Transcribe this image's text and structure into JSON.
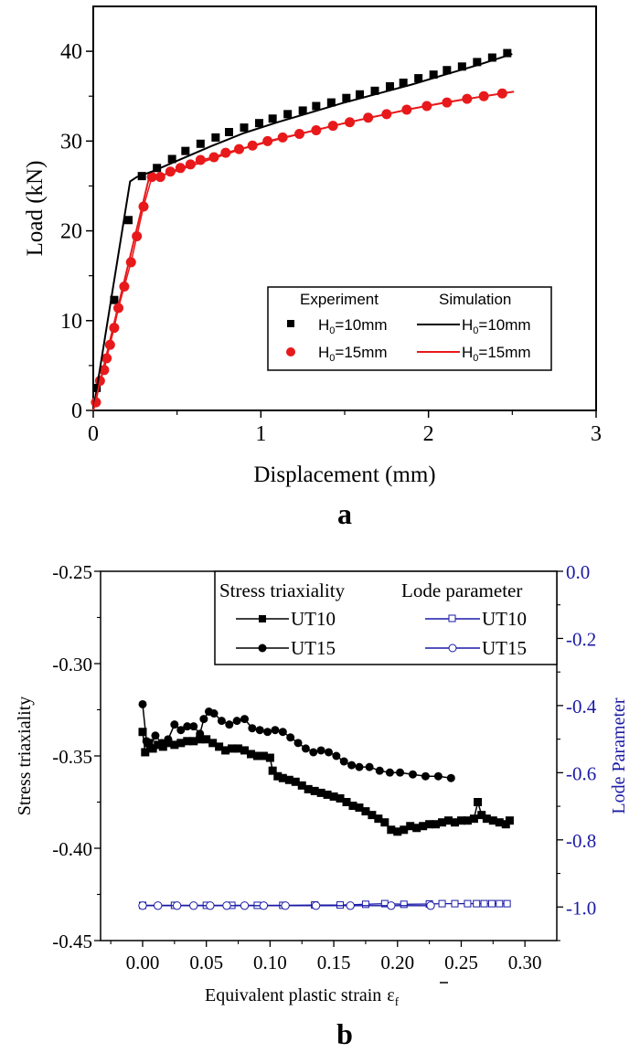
{
  "chart_data": [
    {
      "panel_label": "a",
      "type": "line",
      "title": "",
      "xlabel": "Displacement (mm)",
      "ylabel": "Load (kN)",
      "xlim": [
        0,
        3
      ],
      "ylim": [
        0,
        45
      ],
      "xticks": [
        0,
        1,
        2,
        3
      ],
      "xtick_labels": [
        "0",
        "1",
        "2",
        "3"
      ],
      "yticks": [
        0,
        10,
        20,
        30,
        40
      ],
      "ytick_labels": [
        "0",
        "10",
        "20",
        "30",
        "40"
      ],
      "grid": false,
      "legend": {
        "placement": "bottom-right",
        "headers": [
          "Experiment",
          "Simulation"
        ],
        "entries": [
          {
            "group": "Experiment",
            "label_main": "H",
            "label_sub": "0",
            "label_rest": "=10mm",
            "marker": "square",
            "color": "#000000"
          },
          {
            "group": "Experiment",
            "label_main": "H",
            "label_sub": "0",
            "label_rest": "=15mm",
            "marker": "circle",
            "color": "#e8191b"
          },
          {
            "group": "Simulation",
            "label_main": "H",
            "label_sub": "0",
            "label_rest": "=10mm",
            "marker": "line",
            "color": "#000000"
          },
          {
            "group": "Simulation",
            "label_main": "H",
            "label_sub": "0",
            "label_rest": "=15mm",
            "marker": "line",
            "color": "#e8191b"
          }
        ]
      },
      "series": [
        {
          "name": "Experiment H0=10mm",
          "style": "marker",
          "marker": "square",
          "color": "#000000",
          "x": [
            0.02,
            0.125,
            0.21,
            0.29,
            0.38,
            0.47,
            0.55,
            0.64,
            0.73,
            0.81,
            0.9,
            0.99,
            1.07,
            1.16,
            1.25,
            1.33,
            1.42,
            1.51,
            1.59,
            1.68,
            1.77,
            1.85,
            1.94,
            2.03,
            2.11,
            2.2,
            2.29,
            2.38,
            2.47
          ],
          "y": [
            2.5,
            12.3,
            21.2,
            26.1,
            27.0,
            28.0,
            28.9,
            29.7,
            30.4,
            31.0,
            31.5,
            32.0,
            32.5,
            33.0,
            33.4,
            33.9,
            34.3,
            34.8,
            35.2,
            35.6,
            36.1,
            36.5,
            37.0,
            37.4,
            37.9,
            38.3,
            38.8,
            39.3,
            39.8
          ]
        },
        {
          "name": "Experiment H0=15mm",
          "style": "marker-line",
          "marker": "circle",
          "color": "#e8191b",
          "x": [
            0.016,
            0.04,
            0.065,
            0.08,
            0.1,
            0.125,
            0.15,
            0.185,
            0.225,
            0.26,
            0.3,
            0.35,
            0.4,
            0.46,
            0.52,
            0.58,
            0.64,
            0.72,
            0.79,
            0.87,
            0.95,
            1.04,
            1.13,
            1.23,
            1.33,
            1.43,
            1.53,
            1.64,
            1.75,
            1.87,
            1.99,
            2.11,
            2.23,
            2.33,
            2.44
          ],
          "y": [
            0.9,
            3.3,
            4.5,
            5.8,
            7.3,
            9.2,
            11.4,
            13.8,
            16.5,
            19.4,
            22.7,
            26.0,
            26.0,
            26.6,
            27.0,
            27.4,
            27.9,
            28.2,
            28.7,
            29.1,
            29.5,
            30.0,
            30.4,
            30.8,
            31.2,
            31.7,
            32.1,
            32.6,
            33.0,
            33.5,
            33.9,
            34.3,
            34.7,
            35.0,
            35.3
          ]
        },
        {
          "name": "Simulation H0=10mm",
          "style": "line",
          "color": "#000000",
          "x": [
            0.0,
            0.22,
            0.26,
            0.35,
            0.5,
            0.7,
            0.9,
            1.1,
            1.3,
            1.5,
            1.7,
            1.9,
            2.1,
            2.3,
            2.5
          ],
          "y": [
            0.0,
            25.5,
            26.0,
            26.6,
            27.8,
            29.4,
            30.9,
            32.1,
            33.2,
            34.3,
            35.3,
            36.3,
            37.4,
            38.5,
            39.7
          ]
        },
        {
          "name": "Simulation H0=15mm",
          "style": "line",
          "color": "#e8191b",
          "x": [
            0.0,
            0.33,
            0.38,
            0.5,
            0.7,
            0.9,
            1.1,
            1.3,
            1.5,
            1.7,
            1.9,
            2.1,
            2.3,
            2.51
          ],
          "y": [
            0.0,
            25.7,
            26.0,
            26.7,
            28.0,
            29.2,
            30.2,
            31.1,
            32.0,
            32.8,
            33.6,
            34.3,
            34.9,
            35.5
          ]
        }
      ]
    },
    {
      "panel_label": "b",
      "type": "line",
      "title": "",
      "xlabel": "Equivalent plastic strain",
      "xlabel_symbol": "ε",
      "xlabel_symbol_sub": "f",
      "ylabel": "Stress triaxiality",
      "ylabel_right": "Lode Parameter",
      "xlim": [
        -0.033,
        0.325
      ],
      "ylim": [
        -0.45,
        -0.25
      ],
      "ylim_right": [
        -1.1,
        0.0
      ],
      "xticks": [
        0.0,
        0.05,
        0.1,
        0.15,
        0.2,
        0.25,
        0.3
      ],
      "xtick_labels": [
        "0.00",
        "0.05",
        "0.10",
        "0.15",
        "0.20",
        "0.25",
        "0.30"
      ],
      "yticks": [
        -0.25,
        -0.3,
        -0.35,
        -0.4,
        -0.45
      ],
      "ytick_labels": [
        "-0.25",
        "-0.30",
        "-0.35",
        "-0.40",
        "-0.45"
      ],
      "yticks_right": [
        0.0,
        -0.2,
        -0.4,
        -0.6,
        -0.8,
        -1.0
      ],
      "ytick_labels_right": [
        "0.0",
        "-0.2",
        "-0.4",
        "-0.6",
        "-0.8",
        "-1.0"
      ],
      "right_axis_color": "#1a1aa6",
      "grid": false,
      "legend": {
        "placement": "top-right",
        "headers": [
          "Stress triaxiality",
          "Lode parameter"
        ],
        "entries": [
          {
            "group": "Stress triaxiality",
            "label": "UT10",
            "marker": "square-filled",
            "color": "#000000"
          },
          {
            "group": "Stress triaxiality",
            "label": "UT15",
            "marker": "circle-filled",
            "color": "#000000"
          },
          {
            "group": "Lode parameter",
            "label": "UT10",
            "marker": "square-open",
            "color": "#1a1aa6"
          },
          {
            "group": "Lode parameter",
            "label": "UT15",
            "marker": "circle-open",
            "color": "#1a1aa6"
          }
        ]
      },
      "series": [
        {
          "name": "Stress triaxiality UT10",
          "axis": "left",
          "marker": "square-filled",
          "color": "#000000",
          "x": [
            0.0,
            0.002,
            0.005,
            0.008,
            0.012,
            0.016,
            0.02,
            0.025,
            0.03,
            0.035,
            0.04,
            0.045,
            0.05,
            0.055,
            0.06,
            0.065,
            0.07,
            0.075,
            0.08,
            0.085,
            0.09,
            0.095,
            0.1,
            0.102,
            0.106,
            0.11,
            0.115,
            0.12,
            0.125,
            0.13,
            0.135,
            0.14,
            0.145,
            0.15,
            0.155,
            0.16,
            0.165,
            0.17,
            0.175,
            0.18,
            0.185,
            0.19,
            0.195,
            0.2,
            0.205,
            0.21,
            0.215,
            0.22,
            0.225,
            0.23,
            0.235,
            0.24,
            0.245,
            0.25,
            0.255,
            0.26,
            0.263,
            0.266,
            0.27,
            0.275,
            0.28,
            0.285,
            0.288
          ],
          "y": [
            -0.337,
            -0.348,
            -0.343,
            -0.346,
            -0.344,
            -0.345,
            -0.343,
            -0.344,
            -0.343,
            -0.342,
            -0.342,
            -0.341,
            -0.341,
            -0.343,
            -0.345,
            -0.347,
            -0.346,
            -0.346,
            -0.347,
            -0.349,
            -0.35,
            -0.35,
            -0.351,
            -0.358,
            -0.361,
            -0.362,
            -0.363,
            -0.364,
            -0.366,
            -0.368,
            -0.369,
            -0.37,
            -0.371,
            -0.372,
            -0.373,
            -0.375,
            -0.377,
            -0.378,
            -0.38,
            -0.382,
            -0.384,
            -0.386,
            -0.39,
            -0.391,
            -0.39,
            -0.388,
            -0.389,
            -0.388,
            -0.387,
            -0.387,
            -0.386,
            -0.385,
            -0.386,
            -0.385,
            -0.385,
            -0.384,
            -0.375,
            -0.382,
            -0.384,
            -0.385,
            -0.386,
            -0.387,
            -0.385
          ]
        },
        {
          "name": "Stress triaxiality UT15",
          "axis": "left",
          "marker": "circle-filled",
          "color": "#000000",
          "x": [
            0.0,
            0.003,
            0.006,
            0.01,
            0.015,
            0.02,
            0.025,
            0.03,
            0.035,
            0.04,
            0.045,
            0.048,
            0.052,
            0.056,
            0.062,
            0.068,
            0.074,
            0.08,
            0.086,
            0.092,
            0.098,
            0.104,
            0.11,
            0.116,
            0.122,
            0.128,
            0.134,
            0.14,
            0.146,
            0.152,
            0.158,
            0.164,
            0.17,
            0.178,
            0.186,
            0.194,
            0.202,
            0.212,
            0.222,
            0.232,
            0.242
          ],
          "y": [
            -0.322,
            -0.342,
            -0.345,
            -0.339,
            -0.343,
            -0.341,
            -0.333,
            -0.336,
            -0.334,
            -0.334,
            -0.338,
            -0.33,
            -0.326,
            -0.327,
            -0.331,
            -0.333,
            -0.331,
            -0.33,
            -0.335,
            -0.336,
            -0.337,
            -0.336,
            -0.337,
            -0.34,
            -0.343,
            -0.346,
            -0.348,
            -0.347,
            -0.348,
            -0.35,
            -0.353,
            -0.355,
            -0.356,
            -0.356,
            -0.358,
            -0.359,
            -0.359,
            -0.36,
            -0.361,
            -0.361,
            -0.362
          ]
        },
        {
          "name": "Lode parameter UT10",
          "axis": "right",
          "marker": "square-open",
          "color": "#1a1aa6",
          "x": [
            0.0,
            0.025,
            0.05,
            0.07,
            0.09,
            0.11,
            0.135,
            0.155,
            0.175,
            0.19,
            0.205,
            0.225,
            0.235,
            0.245,
            0.255,
            0.262,
            0.268,
            0.274,
            0.28,
            0.286
          ],
          "y": [
            -0.995,
            -0.995,
            -0.995,
            -0.995,
            -0.995,
            -0.995,
            -0.994,
            -0.994,
            -0.992,
            -0.99,
            -0.992,
            -0.991,
            -0.99,
            -0.99,
            -0.99,
            -0.99,
            -0.99,
            -0.99,
            -0.99,
            -0.99
          ]
        },
        {
          "name": "Lode parameter UT15",
          "axis": "right",
          "marker": "circle-open",
          "color": "#1a1aa6",
          "x": [
            0.0,
            0.012,
            0.027,
            0.04,
            0.053,
            0.066,
            0.08,
            0.095,
            0.112,
            0.136,
            0.163,
            0.195,
            0.226
          ],
          "y": [
            -0.996,
            -0.996,
            -0.996,
            -0.996,
            -0.996,
            -0.996,
            -0.996,
            -0.996,
            -0.996,
            -0.996,
            -0.996,
            -0.996,
            -0.996
          ]
        }
      ]
    }
  ]
}
